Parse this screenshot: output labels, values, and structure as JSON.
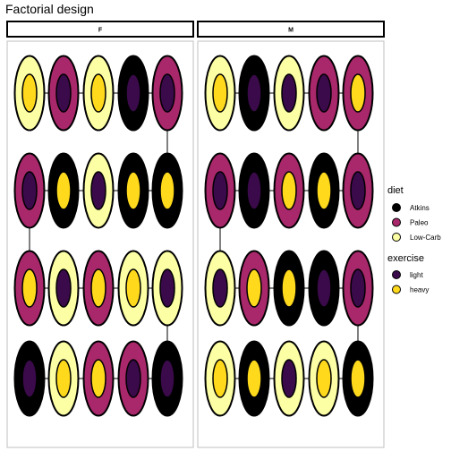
{
  "title": "Factorial design",
  "colors": {
    "Atkins": "#000000",
    "Paleo": "#a8286b",
    "Low-Carb": "#fcffa4",
    "light": "#3a0a4a",
    "heavy": "#ffd91c",
    "panel_border": "#bfbfbf",
    "connector": "#000000"
  },
  "legend": {
    "diet": {
      "title": "diet",
      "items": [
        "Atkins",
        "Paleo",
        "Low-Carb"
      ]
    },
    "exercise": {
      "title": "exercise",
      "items": [
        "light",
        "heavy"
      ]
    }
  },
  "panels": [
    {
      "label": "F",
      "rows": [
        [
          [
            "Low-Carb",
            "heavy"
          ],
          [
            "Paleo",
            "light"
          ],
          [
            "Low-Carb",
            "heavy"
          ],
          [
            "Atkins",
            "light"
          ],
          [
            "Paleo",
            "light"
          ]
        ],
        [
          [
            "Paleo",
            "light"
          ],
          [
            "Atkins",
            "heavy"
          ],
          [
            "Low-Carb",
            "light"
          ],
          [
            "Atkins",
            "heavy"
          ],
          [
            "Atkins",
            "heavy"
          ]
        ],
        [
          [
            "Paleo",
            "heavy"
          ],
          [
            "Low-Carb",
            "light"
          ],
          [
            "Paleo",
            "heavy"
          ],
          [
            "Low-Carb",
            "heavy"
          ],
          [
            "Low-Carb",
            "light"
          ]
        ],
        [
          [
            "Atkins",
            "light"
          ],
          [
            "Low-Carb",
            "heavy"
          ],
          [
            "Paleo",
            "heavy"
          ],
          [
            "Paleo",
            "light"
          ],
          [
            "Atkins",
            "light"
          ]
        ]
      ]
    },
    {
      "label": "M",
      "rows": [
        [
          [
            "Low-Carb",
            "heavy"
          ],
          [
            "Atkins",
            "light"
          ],
          [
            "Low-Carb",
            "light"
          ],
          [
            "Paleo",
            "light"
          ],
          [
            "Paleo",
            "heavy"
          ]
        ],
        [
          [
            "Paleo",
            "light"
          ],
          [
            "Atkins",
            "light"
          ],
          [
            "Paleo",
            "heavy"
          ],
          [
            "Atkins",
            "heavy"
          ],
          [
            "Paleo",
            "light"
          ]
        ],
        [
          [
            "Low-Carb",
            "light"
          ],
          [
            "Paleo",
            "heavy"
          ],
          [
            "Atkins",
            "heavy"
          ],
          [
            "Atkins",
            "light"
          ],
          [
            "Paleo",
            "light"
          ]
        ],
        [
          [
            "Low-Carb",
            "heavy"
          ],
          [
            "Atkins",
            "heavy"
          ],
          [
            "Low-Carb",
            "light"
          ],
          [
            "Low-Carb",
            "heavy"
          ],
          [
            "Atkins",
            "heavy"
          ]
        ]
      ]
    }
  ]
}
